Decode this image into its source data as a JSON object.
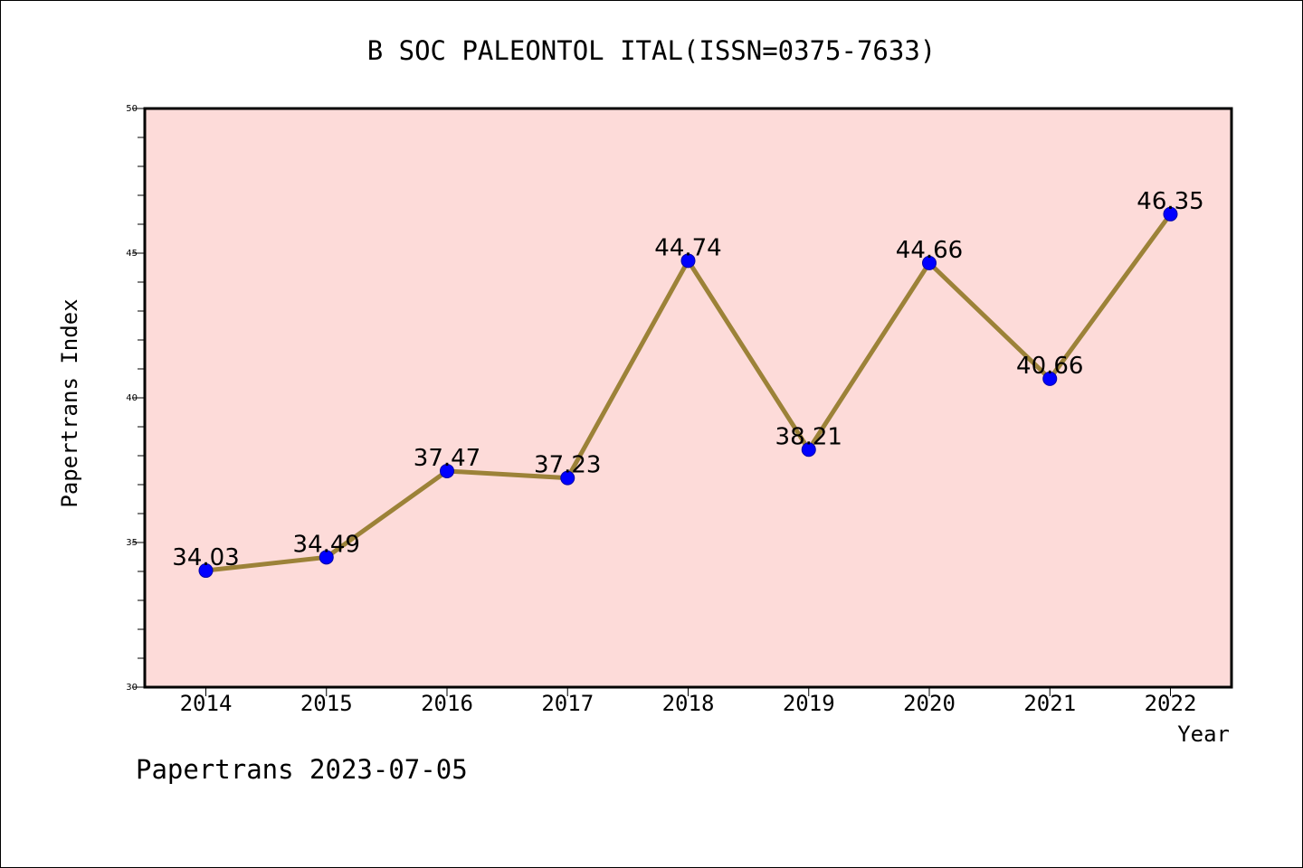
{
  "chart_data": {
    "type": "line",
    "title": "B SOC PALEONTOL ITAL(ISSN=0375-7633)",
    "xlabel": "Year",
    "ylabel": "Papertrans Index",
    "categories": [
      "2014",
      "2015",
      "2016",
      "2017",
      "2018",
      "2019",
      "2020",
      "2021",
      "2022"
    ],
    "values": [
      34.03,
      34.49,
      37.47,
      37.23,
      44.74,
      38.21,
      44.66,
      40.66,
      46.35
    ],
    "data_labels": [
      "34.03",
      "34.49",
      "37.47",
      "37.23",
      "44.74",
      "38.21",
      "44.66",
      "40.66",
      "46.35"
    ],
    "ylim": [
      30,
      50
    ],
    "y_ticks": [
      30,
      35,
      40,
      45,
      50
    ],
    "y_tick_labels": [
      "30",
      "35",
      "40",
      "45",
      "50"
    ],
    "y_minor_step": 1,
    "grid": false,
    "colors": {
      "plot_background": "#fddbd9",
      "line": "#9c8238",
      "marker": "#0000ff",
      "axis": "#000000"
    }
  },
  "footer": "Papertrans 2023-07-05"
}
